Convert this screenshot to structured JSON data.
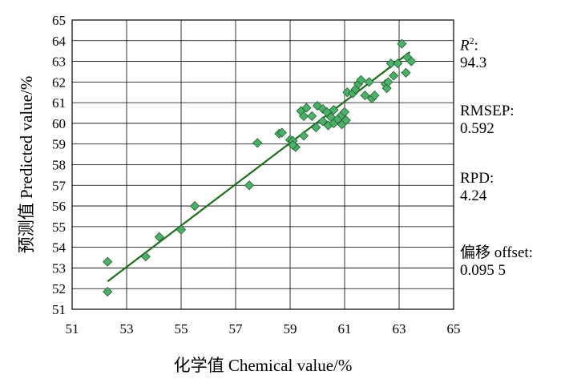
{
  "chart_data": {
    "type": "scatter",
    "xlabel": "化学值  Chemical value/%",
    "ylabel": "预测值  Predicted value/%",
    "xlim": [
      51,
      65
    ],
    "ylim": [
      51,
      65
    ],
    "xticks": [
      51,
      53,
      55,
      57,
      59,
      61,
      63,
      65
    ],
    "yticks": [
      51,
      52,
      53,
      54,
      55,
      56,
      57,
      58,
      59,
      60,
      61,
      62,
      63,
      64,
      65
    ],
    "grid": true,
    "marker": "diamond",
    "marker_color": "#4caf6a",
    "line_color": "#1d6e1d",
    "fit_line": {
      "x": [
        52.3,
        63.4
      ],
      "y": [
        52.35,
        63.45
      ]
    },
    "points": [
      {
        "x": 52.3,
        "y": 53.3
      },
      {
        "x": 52.3,
        "y": 51.85
      },
      {
        "x": 53.7,
        "y": 53.55
      },
      {
        "x": 54.2,
        "y": 54.5
      },
      {
        "x": 55.0,
        "y": 54.85
      },
      {
        "x": 55.5,
        "y": 56.0
      },
      {
        "x": 57.5,
        "y": 57.0
      },
      {
        "x": 57.8,
        "y": 59.05
      },
      {
        "x": 58.6,
        "y": 59.5
      },
      {
        "x": 58.7,
        "y": 59.55
      },
      {
        "x": 59.0,
        "y": 59.2
      },
      {
        "x": 59.1,
        "y": 59.15
      },
      {
        "x": 59.2,
        "y": 58.85
      },
      {
        "x": 59.1,
        "y": 58.95
      },
      {
        "x": 59.4,
        "y": 60.6
      },
      {
        "x": 59.6,
        "y": 60.75
      },
      {
        "x": 59.5,
        "y": 60.35
      },
      {
        "x": 59.5,
        "y": 59.4
      },
      {
        "x": 59.8,
        "y": 60.35
      },
      {
        "x": 59.95,
        "y": 59.8
      },
      {
        "x": 60.0,
        "y": 60.85
      },
      {
        "x": 60.2,
        "y": 60.7
      },
      {
        "x": 60.35,
        "y": 60.55
      },
      {
        "x": 60.2,
        "y": 60.1
      },
      {
        "x": 60.4,
        "y": 59.9
      },
      {
        "x": 60.5,
        "y": 60.3
      },
      {
        "x": 60.6,
        "y": 60.65
      },
      {
        "x": 60.6,
        "y": 60.0
      },
      {
        "x": 60.75,
        "y": 60.2
      },
      {
        "x": 60.9,
        "y": 60.4
      },
      {
        "x": 60.9,
        "y": 59.95
      },
      {
        "x": 61.0,
        "y": 60.55
      },
      {
        "x": 61.05,
        "y": 60.15
      },
      {
        "x": 61.1,
        "y": 61.5
      },
      {
        "x": 61.3,
        "y": 61.45
      },
      {
        "x": 61.4,
        "y": 61.65
      },
      {
        "x": 61.5,
        "y": 61.9
      },
      {
        "x": 61.6,
        "y": 62.1
      },
      {
        "x": 61.75,
        "y": 61.35
      },
      {
        "x": 61.9,
        "y": 62.0
      },
      {
        "x": 62.0,
        "y": 61.2
      },
      {
        "x": 62.1,
        "y": 61.35
      },
      {
        "x": 62.5,
        "y": 61.9
      },
      {
        "x": 62.55,
        "y": 61.7
      },
      {
        "x": 62.6,
        "y": 62.0
      },
      {
        "x": 62.7,
        "y": 62.9
      },
      {
        "x": 62.8,
        "y": 62.3
      },
      {
        "x": 62.95,
        "y": 62.9
      },
      {
        "x": 63.1,
        "y": 63.85
      },
      {
        "x": 63.25,
        "y": 62.45
      },
      {
        "x": 63.3,
        "y": 63.2
      },
      {
        "x": 63.45,
        "y": 63.0
      }
    ]
  },
  "stats": {
    "r2_label": "R²:",
    "r2_value": "94.3",
    "rmsep_label": "RMSEP:",
    "rmsep_value": "0.592",
    "rpd_label": "RPD:",
    "rpd_value": "4.24",
    "offset_label": "偏移  offset:",
    "offset_value": "0.095 5"
  }
}
